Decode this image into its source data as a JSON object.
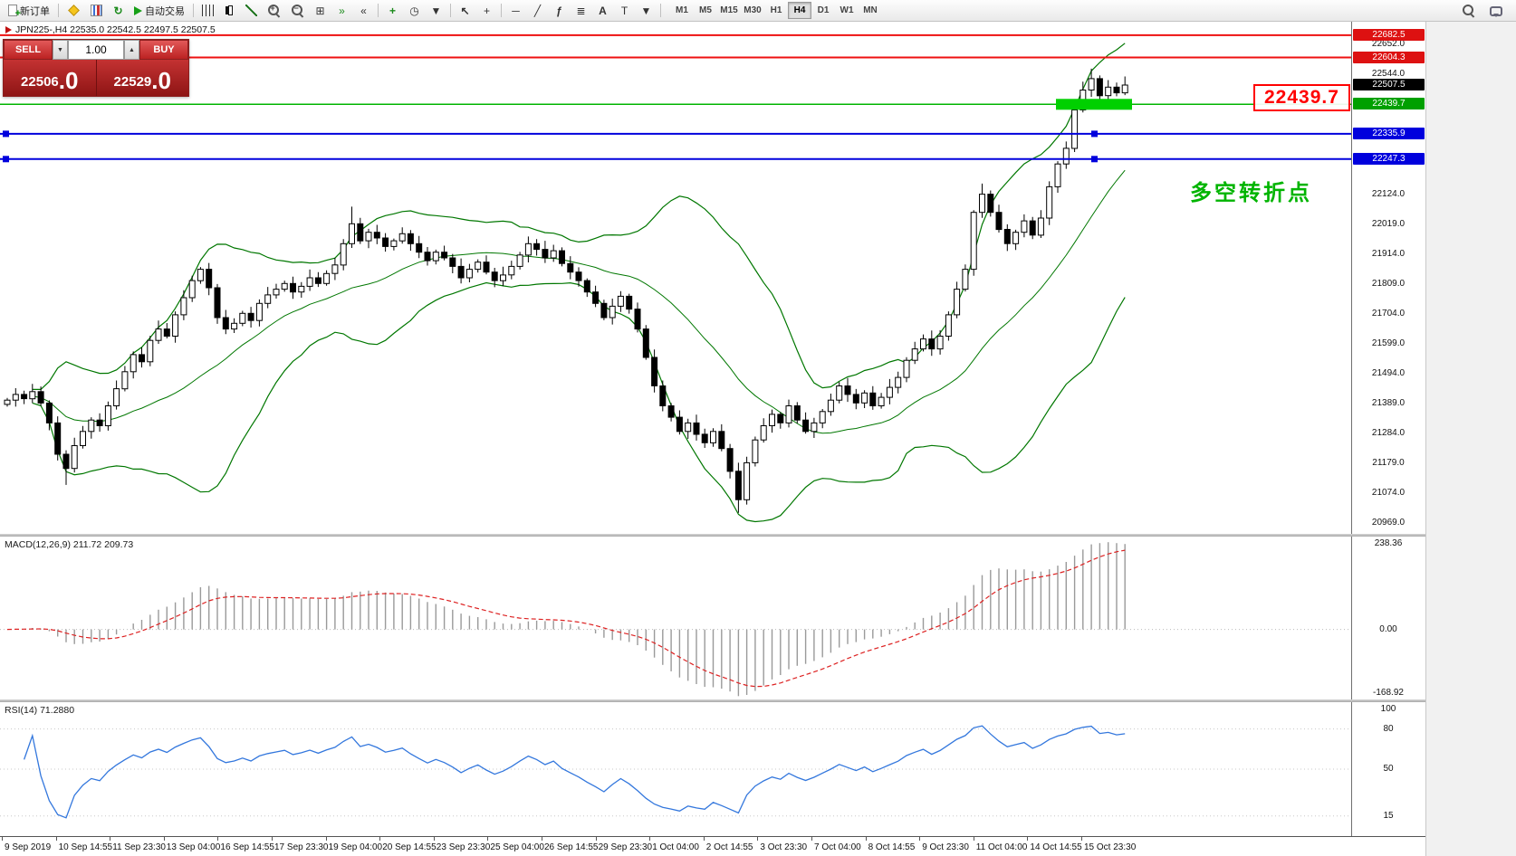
{
  "toolbar": {
    "new_order_label": "新订单",
    "auto_trading_label": "自动交易",
    "timeframes": [
      "M1",
      "M5",
      "M15",
      "M30",
      "H1",
      "H4",
      "D1",
      "W1",
      "MN"
    ],
    "active_timeframe": "H4"
  },
  "chart": {
    "symbol_info": "JPN225-,H4  22535.0 22542.5 22497.5 22507.5"
  },
  "trade_panel": {
    "sell_label": "SELL",
    "buy_label": "BUY",
    "lot_size": "1.00",
    "sell_price_main": "22506",
    "sell_price_big": ".0",
    "buy_price_main": "22529",
    "buy_price_big": ".0"
  },
  "annotations": {
    "price_callout": "22439.7",
    "callout_color": "#ff0000",
    "note_text": "多空转折点",
    "note_color": "#00b400"
  },
  "levels": {
    "resistance_red": [
      22682.5,
      22604.3
    ],
    "current_price": 22507.5,
    "support_green": 22439.7,
    "support_blue": [
      22335.9,
      22247.3
    ],
    "colors": {
      "resistance": "#ee1111",
      "support_green": "#00b400",
      "support_blue": "#0000dd",
      "current": "#000000"
    }
  },
  "price_axis": {
    "plain_ticks": [
      "22652.0",
      "22544.0",
      "22124.0",
      "22019.0",
      "21914.0",
      "21809.0",
      "21704.0",
      "21599.0",
      "21494.0",
      "21389.0",
      "21284.0",
      "21179.0",
      "21074.0",
      "20969.0"
    ],
    "boxed_labels": [
      {
        "label": "22682.5",
        "color": "#dd1111"
      },
      {
        "label": "22604.3",
        "color": "#dd1111"
      },
      {
        "label": "22507.5",
        "color": "#000000"
      },
      {
        "label": "22439.7",
        "color": "#00a000"
      },
      {
        "label": "22335.9",
        "color": "#0000dd"
      },
      {
        "label": "22247.3",
        "color": "#0000dd"
      }
    ]
  },
  "macd_panel": {
    "label": "MACD(12,26,9) 211.72 209.73",
    "axis_ticks": [
      "238.36",
      "0.00",
      "-168.92"
    ]
  },
  "rsi_panel": {
    "label": "RSI(14) 71.2880",
    "axis_ticks": [
      "100",
      "80",
      "50",
      "15"
    ]
  },
  "chart_data": {
    "type": "candlestick",
    "symbol": "JPN225-",
    "timeframe": "H4",
    "ohlc_display": {
      "open": "22535.0",
      "high": "22542.5",
      "low": "22497.5",
      "close": "22507.5"
    },
    "visible_price_range": [
      20969.0,
      22682.5
    ],
    "closes": [
      21400,
      21420,
      21405,
      21430,
      21390,
      21320,
      21210,
      21160,
      21240,
      21290,
      21330,
      21310,
      21380,
      21440,
      21500,
      21560,
      21535,
      21610,
      21650,
      21625,
      21700,
      21760,
      21820,
      21860,
      21795,
      21690,
      21650,
      21670,
      21705,
      21680,
      21740,
      21770,
      21790,
      21810,
      21780,
      21800,
      21830,
      21810,
      21845,
      21875,
      21950,
      22020,
      21960,
      21990,
      21970,
      21940,
      21960,
      21985,
      21950,
      21920,
      21890,
      21920,
      21900,
      21870,
      21830,
      21860,
      21885,
      21850,
      21820,
      21840,
      21870,
      21910,
      21950,
      21930,
      21900,
      21925,
      21880,
      21850,
      21820,
      21780,
      21740,
      21690,
      21730,
      21765,
      21720,
      21650,
      21550,
      21450,
      21380,
      21340,
      21290,
      21320,
      21280,
      21250,
      21290,
      21230,
      21150,
      21050,
      21180,
      21260,
      21310,
      21350,
      21320,
      21380,
      21330,
      21290,
      21320,
      21360,
      21400,
      21450,
      21420,
      21390,
      21425,
      21380,
      21410,
      21445,
      21480,
      21540,
      21580,
      21615,
      21580,
      21625,
      21700,
      21790,
      21860,
      22060,
      22124,
      22060,
      22000,
      21950,
      21990,
      22030,
      21980,
      22040,
      22150,
      22230,
      22285,
      22420,
      22490,
      22530,
      22470,
      22500,
      22480,
      22507.5
    ],
    "wick_overrides": {
      "7": {
        "low": 40
      },
      "41": {
        "high": 30
      },
      "87": {
        "low": 25
      },
      "116": {
        "high": 15
      },
      "129": {
        "high": 15
      }
    },
    "indicators": {
      "bollinger": {
        "period": 20,
        "deviation": 2,
        "color": "#007700"
      },
      "macd": {
        "fast": 12,
        "slow": 26,
        "signal": 9,
        "value": 211.72,
        "signal_value": 209.73,
        "histogram_color": "#9a9a9a",
        "signal_color": "#dd2222",
        "axis_range": [
          -168.92,
          238.36
        ]
      },
      "rsi": {
        "period": 14,
        "value": 71.288,
        "levels": [
          80,
          50,
          15
        ],
        "color": "#3377dd"
      }
    },
    "time_labels": [
      "9 Sep 2019",
      "10 Sep 14:55",
      "11 Sep 23:30",
      "13 Sep 04:00",
      "16 Sep 14:55",
      "17 Sep 23:30",
      "19 Sep 04:00",
      "20 Sep 14:55",
      "23 Sep 23:30",
      "25 Sep 04:00",
      "26 Sep 14:55",
      "29 Sep 23:30",
      "1 Oct 04:00",
      "2 Oct 14:55",
      "3 Oct 23:30",
      "7 Oct 04:00",
      "8 Oct 14:55",
      "9 Oct 23:30",
      "11 Oct 04:00",
      "14 Oct 14:55",
      "15 Oct 23:30"
    ]
  }
}
